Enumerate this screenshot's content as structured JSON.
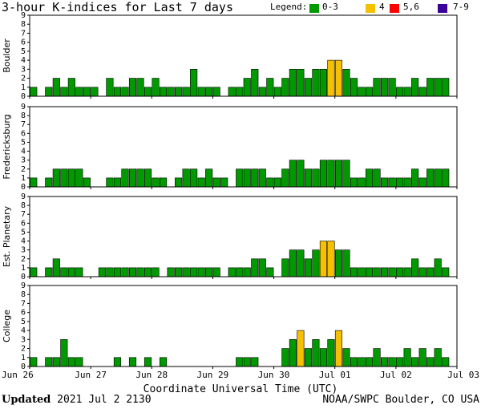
{
  "title": "3-hour K-indices for Last 7 days",
  "legend": {
    "label": "Legend:",
    "items": [
      {
        "label": "0-3",
        "color": "#009900"
      },
      {
        "label": "4",
        "color": "#f5c000"
      },
      {
        "label": "5,6",
        "color": "#ff0000"
      },
      {
        "label": "7-9",
        "color": "#3d0099"
      }
    ]
  },
  "chart_data": {
    "type": "bar",
    "xlabel": "Coordinate Universal Time (UTC)",
    "x_ticks": [
      "Jun 26",
      "Jun 27",
      "Jun 28",
      "Jun 29",
      "Jun 30",
      "Jul 01",
      "Jul 02",
      "Jul 03"
    ],
    "ylim": [
      0,
      9
    ],
    "y_ticks": [
      0,
      1,
      2,
      3,
      4,
      5,
      6,
      7,
      8,
      9
    ],
    "series": [
      {
        "name": "Boulder",
        "values": [
          1,
          0,
          1,
          2,
          1,
          2,
          1,
          1,
          1,
          0,
          2,
          1,
          1,
          2,
          2,
          1,
          2,
          1,
          1,
          1,
          1,
          3,
          1,
          1,
          1,
          0,
          1,
          1,
          2,
          3,
          1,
          2,
          1,
          2,
          3,
          3,
          2,
          3,
          3,
          4,
          4,
          3,
          2,
          1,
          1,
          2,
          2,
          2,
          1,
          1,
          2,
          1,
          2,
          2,
          2,
          0
        ]
      },
      {
        "name": "Fredericksburg",
        "values": [
          1,
          0,
          1,
          2,
          2,
          2,
          2,
          1,
          0,
          0,
          1,
          1,
          2,
          2,
          2,
          2,
          1,
          1,
          0,
          1,
          2,
          2,
          1,
          2,
          1,
          1,
          0,
          2,
          2,
          2,
          2,
          1,
          1,
          2,
          3,
          3,
          2,
          2,
          3,
          3,
          3,
          3,
          1,
          1,
          2,
          2,
          1,
          1,
          1,
          1,
          2,
          1,
          2,
          2,
          2,
          0
        ]
      },
      {
        "name": "Est. Planetary",
        "values": [
          1,
          0,
          1,
          2,
          1,
          1,
          1,
          0,
          0,
          1,
          1,
          1,
          1,
          1,
          1,
          1,
          1,
          0,
          1,
          1,
          1,
          1,
          1,
          1,
          1,
          0,
          1,
          1,
          1,
          2,
          2,
          1,
          0,
          2,
          3,
          3,
          2,
          3,
          4,
          4,
          3,
          3,
          1,
          1,
          1,
          1,
          1,
          1,
          1,
          1,
          2,
          1,
          1,
          2,
          1,
          0
        ]
      },
      {
        "name": "College",
        "values": [
          1,
          0,
          1,
          1,
          3,
          1,
          1,
          0,
          0,
          0,
          0,
          1,
          0,
          1,
          0,
          1,
          0,
          1,
          0,
          0,
          0,
          0,
          0,
          0,
          0,
          0,
          0,
          1,
          1,
          1,
          0,
          0,
          0,
          2,
          3,
          4,
          2,
          3,
          2,
          3,
          4,
          2,
          1,
          1,
          1,
          2,
          1,
          1,
          1,
          2,
          1,
          2,
          1,
          2,
          1,
          0
        ]
      }
    ]
  },
  "footer": {
    "updated_label": "Updated",
    "updated_value": "2021 Jul  2 2130",
    "source": "NOAA/SWPC Boulder, CO USA"
  }
}
